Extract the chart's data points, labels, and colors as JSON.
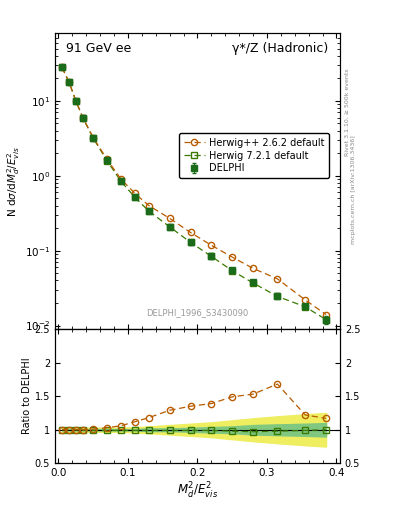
{
  "title_left": "91 GeV ee",
  "title_right": "γ*/Z (Hadronic)",
  "ylabel_main": "N dσ/dM²_d/E²_{vis}",
  "ylabel_ratio": "Ratio to DELPHI",
  "xlabel": "M²_d/E²_{vis}",
  "watermark": "DELPHI_1996_S3430090",
  "right_label_top": "Rivet 3.1.10, ≥ 500k events",
  "right_label_bottom": "mcplots.cern.ch [arXiv:1306.3436]",
  "x_data": [
    0.005,
    0.015,
    0.025,
    0.035,
    0.05,
    0.07,
    0.09,
    0.11,
    0.13,
    0.16,
    0.19,
    0.22,
    0.25,
    0.28,
    0.315,
    0.355,
    0.385
  ],
  "delphi_y": [
    28.0,
    18.0,
    10.0,
    6.0,
    3.2,
    1.6,
    0.85,
    0.52,
    0.34,
    0.21,
    0.13,
    0.085,
    0.055,
    0.038,
    0.025,
    0.018,
    0.012
  ],
  "delphi_yerr": [
    1.5,
    1.2,
    0.6,
    0.4,
    0.2,
    0.1,
    0.05,
    0.03,
    0.025,
    0.015,
    0.01,
    0.007,
    0.004,
    0.003,
    0.002,
    0.0015,
    0.0015
  ],
  "herwig262_y": [
    28.0,
    18.0,
    10.0,
    6.0,
    3.22,
    1.65,
    0.9,
    0.58,
    0.4,
    0.27,
    0.175,
    0.118,
    0.082,
    0.058,
    0.042,
    0.022,
    0.014
  ],
  "herwig721_y": [
    28.0,
    18.0,
    10.0,
    5.95,
    3.18,
    1.58,
    0.84,
    0.515,
    0.337,
    0.208,
    0.129,
    0.084,
    0.054,
    0.037,
    0.0245,
    0.0178,
    0.012
  ],
  "ratio_herwig262": [
    1.0,
    1.0,
    1.0,
    1.0,
    1.01,
    1.03,
    1.06,
    1.12,
    1.18,
    1.29,
    1.35,
    1.39,
    1.49,
    1.53,
    1.68,
    1.22,
    1.17
  ],
  "ratio_herwig721": [
    1.0,
    1.0,
    1.0,
    0.99,
    0.99,
    0.99,
    0.99,
    0.99,
    0.99,
    0.99,
    0.99,
    0.99,
    0.98,
    0.97,
    0.98,
    0.99,
    1.0
  ],
  "band_green_lo": [
    0.99,
    0.99,
    0.99,
    0.99,
    0.99,
    0.99,
    0.99,
    0.99,
    0.98,
    0.98,
    0.97,
    0.96,
    0.95,
    0.93,
    0.92,
    0.91,
    0.9
  ],
  "band_green_hi": [
    1.01,
    1.01,
    1.01,
    1.01,
    1.01,
    1.01,
    1.01,
    1.01,
    1.02,
    1.02,
    1.03,
    1.04,
    1.05,
    1.07,
    1.08,
    1.09,
    1.1
  ],
  "band_yellow_lo": [
    0.97,
    0.97,
    0.97,
    0.97,
    0.97,
    0.97,
    0.97,
    0.96,
    0.95,
    0.93,
    0.91,
    0.89,
    0.86,
    0.83,
    0.8,
    0.77,
    0.75
  ],
  "band_yellow_hi": [
    1.03,
    1.03,
    1.03,
    1.03,
    1.03,
    1.03,
    1.03,
    1.04,
    1.05,
    1.07,
    1.09,
    1.11,
    1.14,
    1.17,
    1.2,
    1.23,
    1.25
  ],
  "delphi_color": "#1a6b1a",
  "herwig262_color": "#b85c00",
  "herwig721_color": "#3a7a00",
  "band_green": "#80c880",
  "band_yellow": "#eeee60",
  "ylim_main": [
    0.009,
    80.0
  ],
  "ylim_ratio": [
    0.5,
    2.5
  ],
  "xlim": [
    -0.005,
    0.405
  ]
}
